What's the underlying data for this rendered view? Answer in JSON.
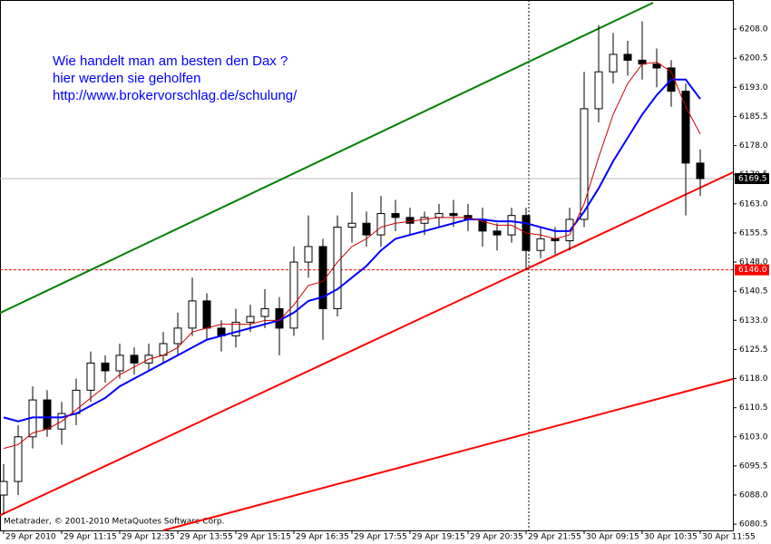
{
  "chart_data": {
    "type": "candlestick",
    "annotation": [
      "Wie handelt man am besten  den Dax ?",
      "hier werden sie geholfen",
      "http://www.brokervorschlag.de/schulung/"
    ],
    "footer": "Metatrader, © 2001-2010 MetaQuotes Software Corp.",
    "categories": [
      "29 Apr 2010",
      null,
      null,
      null,
      "29 Apr 11:15",
      null,
      null,
      null,
      "29 Apr 12:35",
      null,
      null,
      null,
      "29 Apr 13:55",
      null,
      null,
      null,
      "29 Apr 15:15",
      null,
      null,
      null,
      "29 Apr 16:35",
      null,
      null,
      null,
      "29 Apr 17:55",
      null,
      null,
      null,
      "29 Apr 19:15",
      null,
      null,
      null,
      "29 Apr 20:35",
      null,
      null,
      null,
      "29 Apr 21:55",
      null,
      null,
      null,
      "30 Apr 09:15",
      null,
      null,
      null,
      "30 Apr 10:35",
      null,
      null,
      null,
      "30 Apr 11:55"
    ],
    "open": [
      6088,
      6091.5,
      6103,
      6112.5,
      6105,
      6109,
      6115,
      6122,
      6120,
      6124,
      6122,
      6124,
      6127,
      6131,
      6138,
      6131,
      6129,
      6132.5,
      6134,
      6136,
      6131,
      6148,
      6152,
      6136,
      6157,
      6158,
      6155,
      6160.5,
      6159.5,
      6158,
      6159.5,
      6160.5,
      6160,
      6159,
      6156,
      6155,
      6160,
      6151,
      6154,
      6153.5,
      6159,
      6187.5,
      6197,
      6201.5,
      6200,
      6199,
      6198,
      6192,
      6173.5
    ],
    "high": [
      6096,
      6106,
      6116,
      6115,
      6112,
      6118,
      6125,
      6124,
      6127,
      6126,
      6127,
      6130,
      6135,
      6144,
      6140,
      6133,
      6136,
      6137,
      6141,
      6139,
      6152,
      6160,
      6154,
      6160,
      6166,
      6161,
      6165,
      6164,
      6162,
      6161,
      6163,
      6164,
      6163,
      6162,
      6158,
      6162,
      6162,
      6157,
      6157,
      6162,
      6197,
      6209,
      6207,
      6205,
      6210,
      6203,
      6200,
      6194,
      6177
    ],
    "low": [
      6083,
      6088,
      6100,
      6103,
      6101,
      6106,
      6112,
      6117,
      6118,
      6119,
      6120,
      6122,
      6124,
      6129,
      6128,
      6125,
      6126,
      6130,
      6131,
      6124,
      6129,
      6144,
      6128,
      6134,
      6153,
      6152,
      6152,
      6156,
      6155,
      6155,
      6157,
      6157,
      6156,
      6152,
      6151,
      6153,
      6146,
      6149,
      6150,
      6151,
      6157,
      6184,
      6194,
      6196,
      6195,
      6193,
      6188,
      6160,
      6165
    ],
    "close": [
      6091.5,
      6103,
      6112.5,
      6105,
      6109,
      6115,
      6122,
      6120,
      6124,
      6122,
      6124,
      6127,
      6131,
      6138,
      6131,
      6129,
      6132.5,
      6134,
      6136,
      6131,
      6148,
      6152,
      6136,
      6157,
      6158,
      6155,
      6160.5,
      6159.5,
      6158,
      6159.5,
      6160.5,
      6160,
      6159,
      6156,
      6155,
      6160,
      6151,
      6154,
      6153.5,
      6159,
      6187.5,
      6197,
      6201.5,
      6200,
      6199,
      6198,
      6192,
      6173.5,
      6169.5
    ],
    "ma_lines": [
      {
        "color": "#0000ff",
        "values": [
          6108,
          6107,
          6108,
          6108,
          6108,
          6109,
          6111,
          6113,
          6116,
          6118,
          6120,
          6122,
          6124,
          6126,
          6128,
          6129,
          6130,
          6131,
          6132,
          6133,
          6135,
          6138,
          6139,
          6141,
          6144,
          6147,
          6151,
          6154,
          6155,
          6156,
          6157,
          6158,
          6159,
          6159,
          6158.5,
          6158.5,
          6158,
          6157,
          6156,
          6156,
          6161,
          6167,
          6174,
          6180,
          6186,
          6191,
          6195,
          6195,
          6190
        ]
      },
      {
        "color": "#cc0000",
        "values": [
          6100,
          6101,
          6104,
          6105,
          6107,
          6110,
          6113,
          6116,
          6119,
          6121,
          6123,
          6124,
          6126,
          6130,
          6131,
          6132,
          6132,
          6132,
          6133,
          6133,
          6137,
          6142,
          6143,
          6148,
          6152,
          6154,
          6157,
          6158,
          6158.5,
          6159,
          6159.5,
          6159.5,
          6159.5,
          6158.5,
          6157.5,
          6157.5,
          6155.5,
          6155,
          6154,
          6155,
          6163,
          6175,
          6186,
          6194,
          6199,
          6199.5,
          6197,
          6188,
          6181
        ]
      }
    ],
    "trendlines": [
      {
        "color": "#008000",
        "x": [
          -0.25,
          44.75
        ],
        "y": [
          6134.9,
          6214.8
        ]
      },
      {
        "color": "#ff0000",
        "x": [
          -0.25,
          50.25
        ],
        "y": [
          6082.8,
          6171.1
        ]
      },
      {
        "color": "#ff0000",
        "x": [
          11,
          50.25
        ],
        "y": [
          6078.9,
          6117.9
        ]
      }
    ],
    "price_lines": [
      {
        "value": 6169.5,
        "label": "6169.5",
        "color": "#000000"
      },
      {
        "value": 6146,
        "label": "6146.0",
        "color": "#ff0000"
      }
    ],
    "ylim": [
      6078.9,
      6215.5
    ],
    "yticks": [
      6080.5,
      {
        "value": 6088,
        "label": "6088.0"
      },
      6095.5,
      {
        "value": 6103,
        "label": "6103.0"
      },
      6110.5,
      {
        "value": 6118,
        "label": "6118.0"
      },
      6125.5,
      {
        "value": 6133,
        "label": "6133.0"
      },
      6140.5,
      {
        "value": 6148,
        "label": "6148.0"
      },
      6155.5,
      {
        "value": 6163,
        "label": "6163.0"
      },
      6170.5,
      {
        "value": 6178,
        "label": "6178.0"
      },
      6185.5,
      {
        "value": 6193,
        "label": "6193.0"
      },
      6200.5,
      {
        "value": 6208,
        "label": "6208.0"
      }
    ]
  }
}
